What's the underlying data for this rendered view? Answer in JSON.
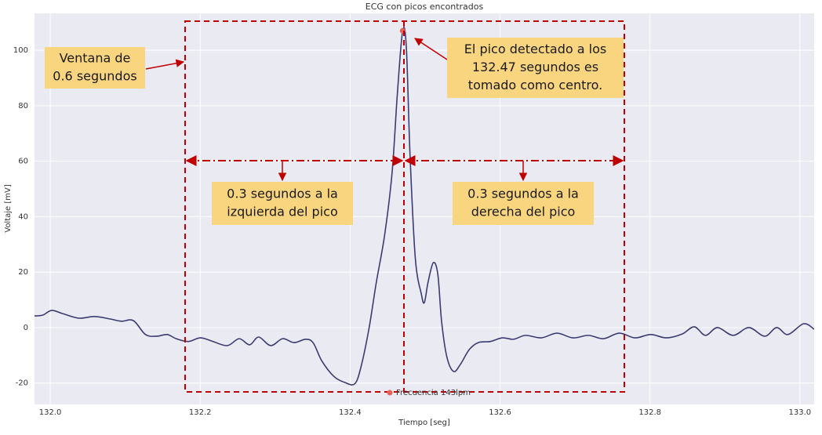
{
  "chart_data": {
    "type": "line",
    "title": "ECG con picos encontrados",
    "xlabel": "Tiempo [seg]",
    "ylabel": "Voltaje [mV]",
    "xlim": [
      131.979,
      133.019
    ],
    "ylim": [
      -27.7,
      113.3
    ],
    "xticks": [
      {
        "value": 132,
        "label": "132.0"
      },
      132.2,
      132.4,
      132.6,
      132.8,
      {
        "value": 133,
        "label": "133.0"
      }
    ],
    "yticks": [
      -20,
      0,
      20,
      40,
      60,
      80,
      100
    ],
    "grid": true,
    "x": [
      131.979,
      131.99,
      132.002,
      132.017,
      132.038,
      132.059,
      132.08,
      132.095,
      132.111,
      132.127,
      132.142,
      132.156,
      132.168,
      132.184,
      132.2,
      132.215,
      132.236,
      132.252,
      132.266,
      132.278,
      132.294,
      132.31,
      132.325,
      132.341,
      132.351,
      132.362,
      132.378,
      132.393,
      132.406,
      132.414,
      132.425,
      132.435,
      132.446,
      132.456,
      132.463,
      132.47,
      132.475,
      132.48,
      132.487,
      132.495,
      132.499,
      132.504,
      132.511,
      132.517,
      132.522,
      132.529,
      132.538,
      132.547,
      132.559,
      132.571,
      132.587,
      132.603,
      132.618,
      132.634,
      132.655,
      132.676,
      132.697,
      132.718,
      132.738,
      132.759,
      132.78,
      132.801,
      132.822,
      132.843,
      132.859,
      132.874,
      132.89,
      132.911,
      132.932,
      132.953,
      132.969,
      132.984,
      133.005,
      133.019
    ],
    "series": [
      {
        "color": "#3b3b72",
        "values": [
          4.2,
          4.5,
          6.2,
          5,
          3.4,
          4,
          3.1,
          2.3,
          2.5,
          -2.5,
          -3.1,
          -2.5,
          -4,
          -5,
          -3.7,
          -4.8,
          -6.5,
          -4,
          -6.2,
          -3.4,
          -6.5,
          -4,
          -5.4,
          -4.2,
          -5.6,
          -11.9,
          -17.5,
          -19.8,
          -20.3,
          -14.7,
          -0.6,
          16.4,
          33.3,
          55.9,
          84.2,
          106.8,
          101,
          61.6,
          24.9,
          12.1,
          9,
          16.4,
          23.4,
          19.2,
          2.3,
          -10.5,
          -15.8,
          -13.3,
          -7.9,
          -5.4,
          -5,
          -3.7,
          -4.2,
          -2.8,
          -3.7,
          -2,
          -3.7,
          -2.8,
          -4,
          -2,
          -3.7,
          -2.5,
          -3.7,
          -2.3,
          0.3,
          -2.8,
          0,
          -2.8,
          0,
          -3.1,
          0,
          -2.5,
          1.4,
          -0.6
        ]
      },
      {
        "name": "Frecuencia 143lpm",
        "color": "#e8625a",
        "x": [
          132.47
        ],
        "values": [
          107
        ]
      }
    ],
    "annotations": [
      {
        "lines": [
          "Ventana de",
          "0.6 segundos"
        ]
      },
      {
        "lines": [
          "El pico detectado a los",
          "132.47 segundos es",
          "tomado como centro."
        ]
      },
      {
        "lines": [
          "0.3 segundos a la",
          "izquierda del pico"
        ]
      },
      {
        "lines": [
          "0.3 segundos a la",
          "derecha del pico"
        ]
      }
    ]
  }
}
